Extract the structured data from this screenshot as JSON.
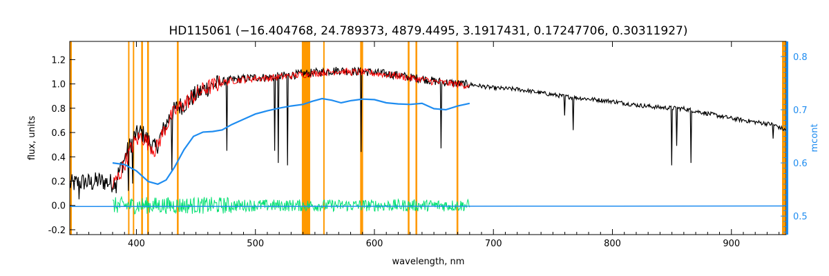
{
  "chart_data": {
    "type": "line",
    "title": "HD115061    (−16.404768, 24.789373, 4879.4495, 3.1917431, 0.17247706, 0.30311927)",
    "xlabel": "wavelength, nm",
    "ylabel": "flux, units",
    "y2label": "mcont",
    "xlim": [
      344,
      946
    ],
    "ylim": [
      -0.24,
      1.35
    ],
    "y2lim": [
      0.4652,
      0.8285
    ],
    "x_ticks": [
      400,
      500,
      600,
      700,
      800,
      900
    ],
    "y_ticks": [
      -0.2,
      0.0,
      0.2,
      0.4,
      0.6,
      0.8,
      1.0,
      1.2
    ],
    "y_tick_labels": [
      "-0.2",
      "0.0",
      "0.2",
      "0.4",
      "0.6",
      "0.8",
      "1.0",
      "1.2"
    ],
    "y2_ticks": [
      0.5,
      0.6,
      0.7,
      0.8
    ],
    "y2_tick_labels": [
      "0.5",
      "0.6",
      "0.7",
      "0.8"
    ],
    "masked_regions": [
      [
        393,
        394
      ],
      [
        397,
        398
      ],
      [
        404,
        405.5
      ],
      [
        409,
        410.5
      ],
      [
        434,
        435.5
      ],
      [
        539,
        546
      ],
      [
        557,
        558
      ],
      [
        588,
        590.5
      ],
      [
        628,
        629.5
      ],
      [
        634.5,
        636
      ],
      [
        669,
        670.5
      ]
    ],
    "series": [
      {
        "color": "#000000",
        "x": [
          344,
          350,
          356,
          362,
          368,
          374,
          380,
          386,
          392,
          398,
          404,
          410,
          416,
          422,
          428,
          434,
          440,
          446,
          452,
          458,
          464,
          470,
          480,
          490,
          500,
          510,
          520,
          530,
          540,
          550,
          560,
          570,
          580,
          590,
          600,
          610,
          620,
          630,
          640,
          650,
          660,
          670,
          680,
          700,
          720,
          740,
          760,
          780,
          800,
          820,
          840,
          860,
          880,
          900,
          920,
          935,
          946
        ],
        "y": [
          0.19,
          0.2,
          0.21,
          0.2,
          0.22,
          0.21,
          0.2,
          0.3,
          0.45,
          0.58,
          0.62,
          0.55,
          0.48,
          0.62,
          0.75,
          0.82,
          0.85,
          0.9,
          0.94,
          0.98,
          1.0,
          1.02,
          1.04,
          1.05,
          1.06,
          1.06,
          1.07,
          1.08,
          1.09,
          1.1,
          1.11,
          1.12,
          1.11,
          1.11,
          1.1,
          1.09,
          1.08,
          1.06,
          1.05,
          1.03,
          1.02,
          1.01,
          1.0,
          0.97,
          0.96,
          0.93,
          0.9,
          0.88,
          0.86,
          0.83,
          0.81,
          0.8,
          0.76,
          0.72,
          0.69,
          0.67,
          0.62
        ],
        "dips": [
          [
            352,
            0.05
          ],
          [
            383,
            0.1
          ],
          [
            393.5,
            0.12
          ],
          [
            397,
            0.18
          ],
          [
            430,
            0.28
          ],
          [
            476,
            0.45
          ],
          [
            516,
            0.45
          ],
          [
            519,
            0.35
          ],
          [
            527,
            0.33
          ],
          [
            589,
            0.44
          ],
          [
            656,
            0.47
          ],
          [
            760,
            0.74
          ],
          [
            767,
            0.62
          ],
          [
            850,
            0.33
          ],
          [
            854,
            0.49
          ],
          [
            866,
            0.35
          ],
          [
            935,
            0.55
          ]
        ]
      },
      {
        "color": "#ff0000",
        "x": [
          380,
          386,
          392,
          398,
          404,
          410,
          416,
          422,
          428,
          434,
          440,
          446,
          452,
          458,
          464,
          470,
          480,
          490,
          500,
          510,
          520,
          530,
          540,
          550,
          560,
          570,
          580,
          590,
          600,
          610,
          620,
          630,
          640,
          650,
          660,
          670,
          680
        ],
        "y": [
          0.17,
          0.26,
          0.4,
          0.52,
          0.58,
          0.52,
          0.46,
          0.6,
          0.72,
          0.8,
          0.84,
          0.89,
          0.93,
          0.97,
          0.99,
          1.01,
          1.03,
          1.04,
          1.05,
          1.05,
          1.06,
          1.07,
          1.08,
          1.09,
          1.1,
          1.11,
          1.1,
          1.1,
          1.09,
          1.08,
          1.07,
          1.05,
          1.04,
          1.02,
          1.01,
          1.0,
          0.99
        ]
      },
      {
        "color": "#00e070",
        "x": [
          380,
          680
        ],
        "y": [
          0.0,
          0.0
        ],
        "scatter_amplitude": 0.05
      },
      {
        "color": "#1e8cf0",
        "axis": "right",
        "x": [
          380,
          390,
          400,
          410,
          418,
          425,
          432,
          440,
          448,
          456,
          464,
          472,
          480,
          490,
          500,
          510,
          520,
          530,
          540,
          548,
          556,
          564,
          572,
          580,
          590,
          600,
          610,
          620,
          630,
          640,
          650,
          660,
          670,
          680
        ],
        "y": [
          0.6,
          0.597,
          0.585,
          0.565,
          0.56,
          0.568,
          0.592,
          0.625,
          0.65,
          0.658,
          0.659,
          0.662,
          0.672,
          0.682,
          0.692,
          0.698,
          0.703,
          0.707,
          0.71,
          0.716,
          0.721,
          0.718,
          0.713,
          0.717,
          0.72,
          0.719,
          0.713,
          0.711,
          0.71,
          0.712,
          0.702,
          0.7,
          0.707,
          0.712
        ]
      },
      {
        "color": "#1e8cf0",
        "axis": "right",
        "x": [
          344,
          946
        ],
        "y": [
          0.518,
          0.519
        ]
      }
    ]
  }
}
